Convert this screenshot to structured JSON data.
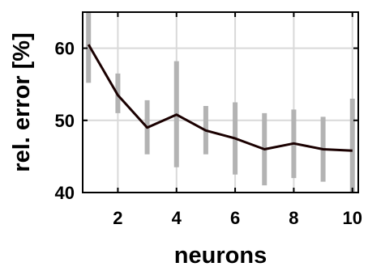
{
  "chart_data": {
    "type": "line",
    "title": "",
    "xlabel": "neurons",
    "ylabel": "rel. error [%]",
    "xlim": [
      0.8,
      10.2
    ],
    "ylim": [
      40,
      65
    ],
    "xticks": [
      2,
      4,
      6,
      8,
      10
    ],
    "yticks": [
      40,
      50,
      60
    ],
    "grid": true,
    "legend": "none",
    "colors": {
      "line": "#1a0000",
      "error_bar": "#b3b3b3",
      "grid": "#d9d9d9",
      "axes": "#000000"
    },
    "series": [
      {
        "x": [
          1,
          2,
          3,
          4,
          5,
          6,
          7,
          8,
          9,
          10
        ],
        "values": [
          60.5,
          53.5,
          49.0,
          50.8,
          48.6,
          47.5,
          46.0,
          46.8,
          46.0,
          45.8
        ],
        "error_low": [
          55.2,
          51.0,
          45.3,
          43.5,
          45.3,
          42.5,
          41.0,
          42.0,
          41.5,
          40.0
        ],
        "error_high": [
          65.0,
          56.5,
          52.8,
          58.2,
          52.0,
          52.5,
          51.0,
          51.5,
          50.5,
          53.0
        ]
      }
    ]
  }
}
